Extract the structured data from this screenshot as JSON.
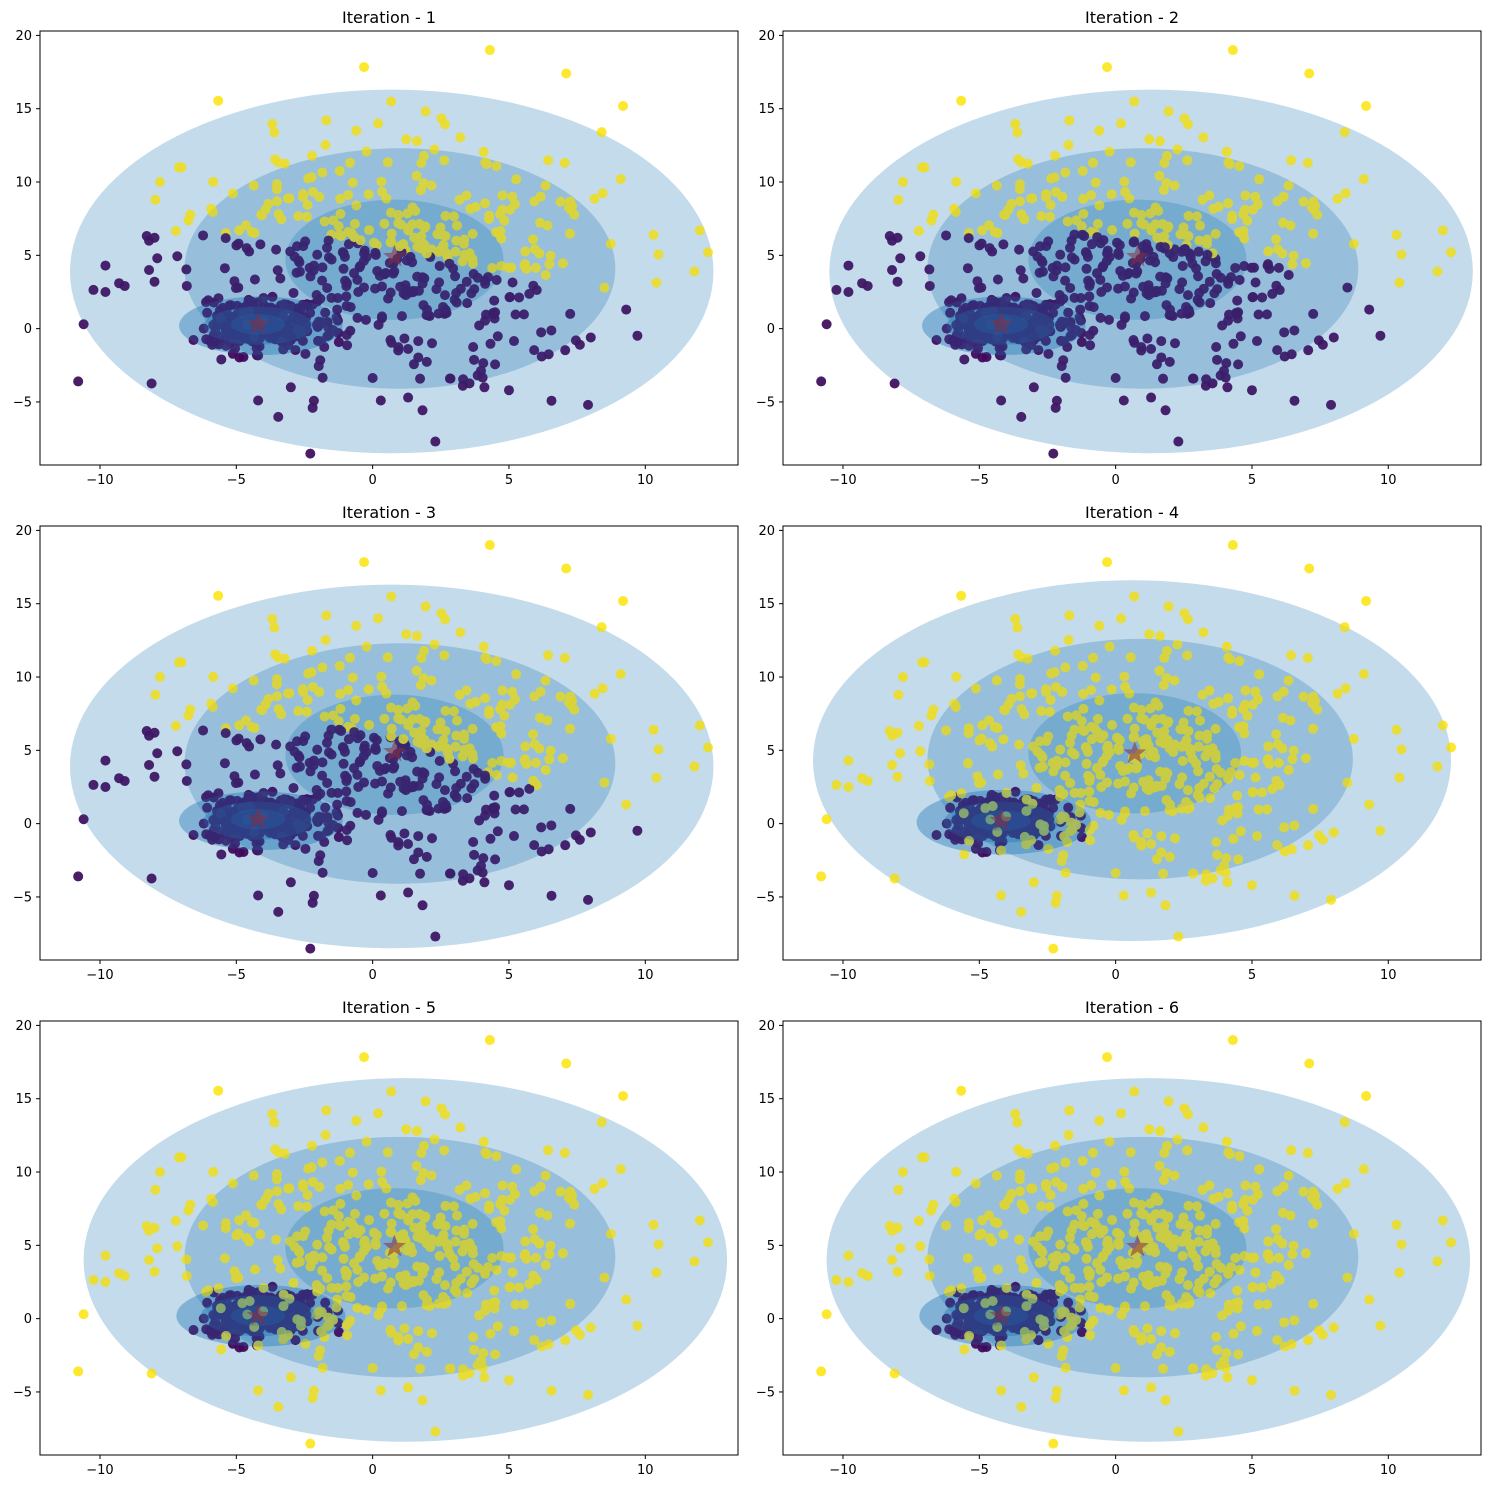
{
  "figure": {
    "layout": "3x2 grid"
  },
  "chart_data": [
    {
      "type": "scatter",
      "title": "Iteration - 1",
      "xlim": [
        -12.2,
        13.4
      ],
      "ylim": [
        -9.3,
        20.3
      ],
      "xticks": [
        -10,
        -5,
        0,
        5,
        10
      ],
      "yticks": [
        -5,
        0,
        5,
        10,
        15,
        20
      ],
      "split": {
        "cx": -1.0,
        "slope": -0.35,
        "ymax": 6.0,
        "purple_below": true
      },
      "centers": [
        {
          "x": -4.2,
          "y": 0.3
        },
        {
          "x": 0.8,
          "y": 4.9
        }
      ],
      "ellipses": [
        {
          "cx": 0.7,
          "cy": 3.9,
          "rx": 11.8,
          "ry": 12.4
        },
        {
          "cx": 1.0,
          "cy": 4.1,
          "rx": 7.9,
          "ry": 8.2
        },
        {
          "cx": 0.8,
          "cy": 4.7,
          "rx": 4.0,
          "ry": 4.1
        },
        {
          "cx": -4.1,
          "cy": 0.2,
          "rx": 3.0,
          "ry": 2.0
        },
        {
          "cx": -4.2,
          "cy": 0.2,
          "rx": 2.0,
          "ry": 1.3
        },
        {
          "cx": -4.2,
          "cy": 0.3,
          "rx": 1.0,
          "ry": 0.7
        }
      ]
    },
    {
      "type": "scatter",
      "title": "Iteration - 2",
      "xlim": [
        -12.2,
        13.4
      ],
      "ylim": [
        -9.3,
        20.3
      ],
      "xticks": [
        -10,
        -5,
        0,
        5,
        10
      ],
      "yticks": [
        -5,
        0,
        5,
        10,
        15,
        20
      ],
      "split": {
        "cx": -1.0,
        "slope": -0.3,
        "ymax": 6.5,
        "purple_below": true
      },
      "centers": [
        {
          "x": -4.2,
          "y": 0.3
        },
        {
          "x": 0.8,
          "y": 4.9
        }
      ],
      "ellipses": [
        {
          "cx": 1.3,
          "cy": 3.9,
          "rx": 11.8,
          "ry": 12.4
        },
        {
          "cx": 1.0,
          "cy": 4.1,
          "rx": 7.9,
          "ry": 8.2
        },
        {
          "cx": 0.8,
          "cy": 4.7,
          "rx": 4.0,
          "ry": 4.1
        },
        {
          "cx": -4.1,
          "cy": 0.2,
          "rx": 3.0,
          "ry": 2.0
        },
        {
          "cx": -4.2,
          "cy": 0.2,
          "rx": 2.0,
          "ry": 1.3
        },
        {
          "cx": -4.2,
          "cy": 0.3,
          "rx": 1.0,
          "ry": 0.7
        }
      ]
    },
    {
      "type": "scatter",
      "title": "Iteration - 3",
      "xlim": [
        -12.2,
        13.4
      ],
      "ylim": [
        -9.3,
        20.3
      ],
      "xticks": [
        -10,
        -5,
        0,
        5,
        10
      ],
      "yticks": [
        -5,
        0,
        5,
        10,
        15,
        20
      ],
      "split": {
        "cx": 2.0,
        "slope": -0.7,
        "ymax": 5.0,
        "purple_below": true
      },
      "centers": [
        {
          "x": -4.2,
          "y": 0.3
        },
        {
          "x": 0.8,
          "y": 4.9
        }
      ],
      "ellipses": [
        {
          "cx": 0.7,
          "cy": 3.9,
          "rx": 11.8,
          "ry": 12.4
        },
        {
          "cx": 1.0,
          "cy": 4.1,
          "rx": 7.9,
          "ry": 8.2
        },
        {
          "cx": 0.8,
          "cy": 4.7,
          "rx": 4.0,
          "ry": 4.1
        },
        {
          "cx": -4.1,
          "cy": 0.2,
          "rx": 3.0,
          "ry": 2.0
        },
        {
          "cx": -4.2,
          "cy": 0.2,
          "rx": 2.0,
          "ry": 1.3
        },
        {
          "cx": -4.2,
          "cy": 0.3,
          "rx": 1.0,
          "ry": 0.7
        }
      ]
    },
    {
      "type": "scatter",
      "title": "Iteration - 4",
      "xlim": [
        -12.2,
        13.4
      ],
      "ylim": [
        -9.3,
        20.3
      ],
      "xticks": [
        -10,
        -5,
        0,
        5,
        10
      ],
      "yticks": [
        -5,
        0,
        5,
        10,
        15,
        20
      ],
      "split": {
        "cluster_only": true
      },
      "centers": [
        {
          "x": -4.2,
          "y": 0.2
        },
        {
          "x": 0.7,
          "y": 4.8
        }
      ],
      "ellipses": [
        {
          "cx": 0.6,
          "cy": 4.3,
          "rx": 11.7,
          "ry": 12.3
        },
        {
          "cx": 0.9,
          "cy": 4.4,
          "rx": 7.8,
          "ry": 8.2
        },
        {
          "cx": 0.7,
          "cy": 4.8,
          "rx": 3.9,
          "ry": 4.1
        },
        {
          "cx": -4.1,
          "cy": 0.1,
          "rx": 3.2,
          "ry": 2.2
        },
        {
          "cx": -4.2,
          "cy": 0.1,
          "rx": 2.1,
          "ry": 1.4
        },
        {
          "cx": -4.2,
          "cy": 0.2,
          "rx": 1.1,
          "ry": 0.7
        }
      ]
    },
    {
      "type": "scatter",
      "title": "Iteration - 5",
      "xlim": [
        -12.2,
        13.4
      ],
      "ylim": [
        -9.3,
        20.3
      ],
      "xticks": [
        -10,
        -5,
        0,
        5,
        10
      ],
      "yticks": [
        -5,
        0,
        5,
        10,
        15,
        20
      ],
      "split": {
        "cluster_only": true
      },
      "centers": [
        {
          "x": -4.2,
          "y": 0.2
        },
        {
          "x": 0.8,
          "y": 4.9
        }
      ],
      "ellipses": [
        {
          "cx": 1.2,
          "cy": 4.0,
          "rx": 11.8,
          "ry": 12.4
        },
        {
          "cx": 1.0,
          "cy": 4.2,
          "rx": 7.9,
          "ry": 8.2
        },
        {
          "cx": 0.8,
          "cy": 4.8,
          "rx": 4.0,
          "ry": 4.1
        },
        {
          "cx": -4.1,
          "cy": 0.2,
          "rx": 3.1,
          "ry": 2.1
        },
        {
          "cx": -4.2,
          "cy": 0.2,
          "rx": 2.1,
          "ry": 1.4
        },
        {
          "cx": -4.2,
          "cy": 0.2,
          "rx": 1.0,
          "ry": 0.7
        }
      ]
    },
    {
      "type": "scatter",
      "title": "Iteration - 6",
      "xlim": [
        -12.2,
        13.4
      ],
      "ylim": [
        -9.3,
        20.3
      ],
      "xticks": [
        -10,
        -5,
        0,
        5,
        10
      ],
      "yticks": [
        -5,
        0,
        5,
        10,
        15,
        20
      ],
      "split": {
        "cluster_only": true
      },
      "centers": [
        {
          "x": -4.2,
          "y": 0.2
        },
        {
          "x": 0.8,
          "y": 4.9
        }
      ],
      "ellipses": [
        {
          "cx": 1.2,
          "cy": 4.0,
          "rx": 11.8,
          "ry": 12.4
        },
        {
          "cx": 1.0,
          "cy": 4.2,
          "rx": 7.9,
          "ry": 8.2
        },
        {
          "cx": 0.8,
          "cy": 4.8,
          "rx": 4.0,
          "ry": 4.1
        },
        {
          "cx": -4.1,
          "cy": 0.2,
          "rx": 3.1,
          "ry": 2.1
        },
        {
          "cx": -4.2,
          "cy": 0.2,
          "rx": 2.1,
          "ry": 1.4
        },
        {
          "cx": -4.2,
          "cy": 0.2,
          "rx": 1.0,
          "ry": 0.7
        }
      ]
    }
  ],
  "points": {
    "cluster_a": {
      "center": [
        -4.2,
        0.3
      ],
      "spread": [
        0.95,
        0.8
      ],
      "count": 260,
      "seed": 7
    },
    "cluster_b": {
      "center": [
        0.8,
        4.6
      ],
      "spread": [
        3.8,
        3.8
      ],
      "count": 440,
      "seed": 13
    },
    "outliers": [
      [
        4.3,
        19.0
      ],
      [
        7.1,
        17.4
      ],
      [
        12.3,
        5.2
      ],
      [
        11.8,
        3.9
      ],
      [
        12.0,
        6.7
      ],
      [
        10.3,
        6.4
      ],
      [
        9.3,
        1.3
      ],
      [
        -10.8,
        -3.6
      ],
      [
        -10.6,
        0.3
      ],
      [
        -9.8,
        4.3
      ],
      [
        -9.8,
        2.5
      ],
      [
        -9.3,
        3.1
      ],
      [
        2.3,
        -7.7
      ],
      [
        7.9,
        -5.2
      ],
      [
        -2.2,
        -5.4
      ],
      [
        -4.2,
        -4.9
      ],
      [
        0.3,
        -4.9
      ],
      [
        1.3,
        -4.7
      ],
      [
        -8.2,
        6.0
      ],
      [
        -8.0,
        6.2
      ],
      [
        -7.8,
        10.0
      ],
      [
        -7.1,
        11.0
      ],
      [
        8.4,
        13.4
      ],
      [
        -1.7,
        14.2
      ],
      [
        0.2,
        14.0
      ],
      [
        -0.6,
        13.5
      ],
      [
        4.1,
        -4.0
      ],
      [
        5.0,
        -4.2
      ],
      [
        -3.0,
        -4.0
      ],
      [
        -8.2,
        4.0
      ],
      [
        -7.9,
        4.8
      ],
      [
        -8.0,
        3.2
      ],
      [
        9.1,
        10.2
      ],
      [
        8.5,
        2.8
      ],
      [
        8.0,
        -0.6
      ],
      [
        6.2,
        -1.9
      ],
      [
        7.6,
        -1.1
      ]
    ]
  },
  "style": {
    "purple": "#440154",
    "yellow": "#fde725",
    "ellipse_fill": "#1f77b4",
    "ellipse_opacity": 0.2,
    "star_fill": "#8b2e3c",
    "axis_color": "#000000"
  }
}
